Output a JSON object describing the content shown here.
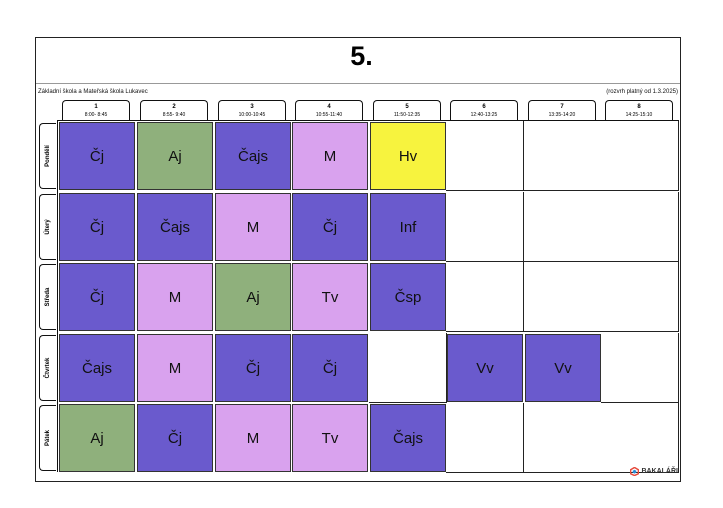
{
  "title": "5.",
  "school_name": "Základní škola a Mateřská škola Lukavec",
  "validity": "(rozvrh platný od 1.3.2025)",
  "brand": "BAKALÁŘI",
  "colors": {
    "Čj": "#6a5acd",
    "Čajs": "#6a5acd",
    "Inf": "#6a5acd",
    "Čsp": "#6a5acd",
    "Vv": "#6a5acd",
    "Aj": "#8fb07c",
    "M": "#d9a2ee",
    "Tv": "#d9a2ee",
    "Hv": "#f7f33e"
  },
  "periods": [
    {
      "num": "1",
      "time": "8:00- 8:45"
    },
    {
      "num": "2",
      "time": "8:55- 9:40"
    },
    {
      "num": "3",
      "time": "10:00-10:45"
    },
    {
      "num": "4",
      "time": "10:55-11:40"
    },
    {
      "num": "5",
      "time": "11:50-12:35"
    },
    {
      "num": "6",
      "time": "12:40-13:25"
    },
    {
      "num": "7",
      "time": "13:35-14:20"
    },
    {
      "num": "8",
      "time": "14:25-15:10"
    }
  ],
  "days": [
    {
      "name": "Pondělí",
      "lessons": [
        "Čj",
        "Aj",
        "Čajs",
        "M",
        "Hv",
        "",
        "",
        ""
      ]
    },
    {
      "name": "Úterý",
      "lessons": [
        "Čj",
        "Čajs",
        "M",
        "Čj",
        "Inf",
        "",
        "",
        ""
      ]
    },
    {
      "name": "Středa",
      "lessons": [
        "Čj",
        "M",
        "Aj",
        "Tv",
        "Čsp",
        "",
        "",
        ""
      ]
    },
    {
      "name": "Čtvrtek",
      "lessons": [
        "Čajs",
        "M",
        "Čj",
        "Čj",
        "",
        "Vv",
        "Vv",
        ""
      ]
    },
    {
      "name": "Pátek",
      "lessons": [
        "Aj",
        "Čj",
        "M",
        "Tv",
        "Čajs",
        "",
        "",
        ""
      ]
    }
  ]
}
